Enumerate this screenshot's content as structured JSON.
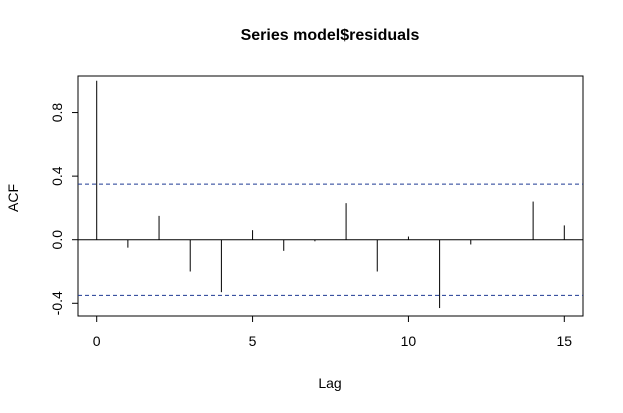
{
  "chart_data": {
    "type": "bar",
    "title": "Series  model$residuals",
    "xlabel": "Lag",
    "ylabel": "ACF",
    "xlim": [
      -0.6,
      15.6
    ],
    "ylim": [
      -0.48,
      1.03
    ],
    "x_ticks": [
      0,
      5,
      10,
      15
    ],
    "x_tick_labels": [
      "0",
      "5",
      "10",
      "15"
    ],
    "y_ticks": [
      -0.4,
      0.0,
      0.4,
      0.8
    ],
    "y_tick_labels": [
      "-0.4",
      "0.0",
      "0.4",
      "0.8"
    ],
    "confidence_band": [
      -0.35,
      0.35
    ],
    "lags": [
      0,
      1,
      2,
      3,
      4,
      5,
      6,
      7,
      8,
      9,
      10,
      11,
      12,
      13,
      14,
      15
    ],
    "values": [
      1.0,
      -0.05,
      0.15,
      -0.2,
      -0.33,
      0.06,
      -0.07,
      -0.01,
      0.23,
      -0.2,
      0.02,
      -0.43,
      -0.03,
      0.0,
      0.24,
      0.09
    ],
    "grid": false,
    "colors": {
      "bars": "#000000",
      "band": "#1f3a93",
      "axes": "#000000"
    }
  }
}
